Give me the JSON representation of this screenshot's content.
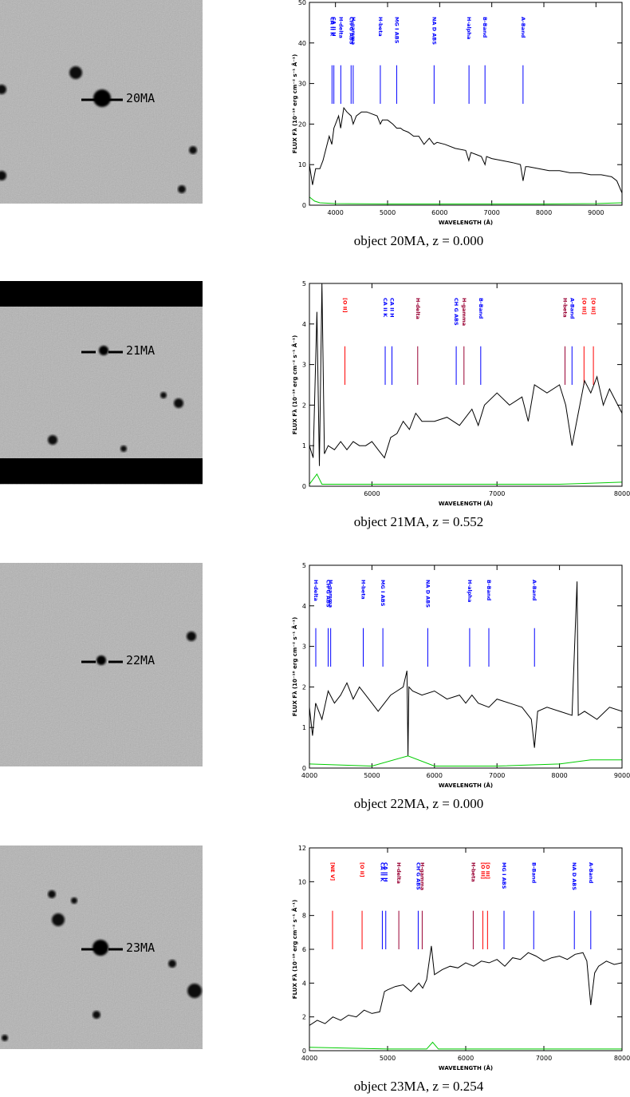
{
  "stamps": [
    {
      "label": "20MA"
    },
    {
      "label": "21MA"
    },
    {
      "label": "22MA"
    },
    {
      "label": "23MA"
    }
  ],
  "chart_data": [
    {
      "type": "line",
      "caption": "object 20MA, z = 0.000",
      "xlabel": "WAVELENGTH (Å)",
      "ylabel": "FLUX Fλ (10⁻¹⁸ erg cm⁻² s⁻¹ Å⁻¹)",
      "xlim": [
        3500,
        9500
      ],
      "xticks": [
        4000,
        5000,
        6000,
        7000,
        8000,
        9000
      ],
      "ylim": [
        0,
        50
      ],
      "yticks": [
        0,
        10,
        20,
        30,
        40,
        50
      ],
      "series": [
        {
          "color": "#000000",
          "x": [
            3500,
            3560,
            3620,
            3700,
            3760,
            3820,
            3880,
            3930,
            3970,
            4000,
            4060,
            4100,
            4160,
            4220,
            4300,
            4340,
            4400,
            4500,
            4600,
            4700,
            4800,
            4860,
            4900,
            5000,
            5100,
            5175,
            5250,
            5300,
            5400,
            5500,
            5600,
            5700,
            5800,
            5890,
            5950,
            6100,
            6300,
            6500,
            6560,
            6600,
            6700,
            6800,
            6870,
            6900,
            7000,
            7200,
            7400,
            7550,
            7600,
            7650,
            7700,
            7900,
            8100,
            8300,
            8500,
            8700,
            8900,
            9100,
            9300,
            9400,
            9500
          ],
          "values": [
            10,
            5,
            9,
            9,
            11,
            14,
            17,
            15,
            19,
            20,
            22,
            19,
            24,
            23,
            22,
            20,
            22,
            23,
            23,
            22.5,
            22,
            20,
            21,
            21,
            20,
            19,
            19,
            18.5,
            18,
            17,
            17,
            15,
            16.5,
            15,
            15.5,
            15,
            14,
            13.5,
            11,
            13,
            12.5,
            12,
            10,
            12,
            11.5,
            11,
            10.5,
            10,
            6,
            9.5,
            9.5,
            9,
            8.5,
            8.5,
            8,
            8,
            7.5,
            7.5,
            7,
            6,
            3
          ]
        },
        {
          "color": "#00cc00",
          "x": [
            3500,
            3600,
            3700,
            4000,
            5000,
            6000,
            7000,
            8000,
            9000,
            9500
          ],
          "values": [
            2,
            1,
            0.6,
            0.4,
            0.3,
            0.3,
            0.3,
            0.3,
            0.4,
            0.6
          ]
        }
      ],
      "annotations": [
        {
          "text": "CA II K",
          "x": 3934,
          "color": "#0000ff"
        },
        {
          "text": "CA II H",
          "x": 3969,
          "color": "#0000ff"
        },
        {
          "text": "H-delta",
          "x": 4102,
          "color": "#0000ff"
        },
        {
          "text": "CH G ABS",
          "x": 4300,
          "color": "#0000ff"
        },
        {
          "text": "H-gamma",
          "x": 4340,
          "color": "#0000ff"
        },
        {
          "text": "H-beta",
          "x": 4861,
          "color": "#0000ff"
        },
        {
          "text": "MG I ABS",
          "x": 5175,
          "color": "#0000ff"
        },
        {
          "text": "NA D ABS",
          "x": 5893,
          "color": "#0000ff"
        },
        {
          "text": "H-alpha",
          "x": 6563,
          "color": "#0000ff"
        },
        {
          "text": "B-Band",
          "x": 6870,
          "color": "#0000ff"
        },
        {
          "text": "A-Band",
          "x": 7600,
          "color": "#0000ff"
        }
      ]
    },
    {
      "type": "line",
      "caption": "object 21MA, z = 0.552",
      "xlabel": "WAVELENGTH (Å)",
      "ylabel": "FLUX Fλ (10⁻¹⁸ erg cm⁻² s⁻¹ Å⁻¹)",
      "xlim": [
        5500,
        8000
      ],
      "xticks": [
        6000,
        7000,
        8000
      ],
      "ylim": [
        0,
        5
      ],
      "yticks": [
        0,
        1,
        2,
        3,
        4,
        5
      ],
      "series": [
        {
          "color": "#000000",
          "x": [
            5500,
            5530,
            5560,
            5580,
            5600,
            5620,
            5650,
            5700,
            5750,
            5800,
            5850,
            5900,
            5950,
            6000,
            6050,
            6100,
            6150,
            6200,
            6250,
            6300,
            6350,
            6400,
            6500,
            6600,
            6700,
            6800,
            6850,
            6900,
            7000,
            7100,
            7200,
            7250,
            7300,
            7400,
            7500,
            7550,
            7600,
            7650,
            7700,
            7750,
            7800,
            7850,
            7900,
            8000
          ],
          "values": [
            1.0,
            0.7,
            4.3,
            0.5,
            5,
            0.8,
            1.0,
            0.9,
            1.1,
            0.9,
            1.1,
            1.0,
            1.0,
            1.1,
            0.9,
            0.7,
            1.2,
            1.3,
            1.6,
            1.4,
            1.8,
            1.6,
            1.6,
            1.7,
            1.5,
            1.9,
            1.5,
            2.0,
            2.3,
            2.0,
            2.2,
            1.6,
            2.5,
            2.3,
            2.5,
            2.0,
            1.0,
            1.8,
            2.6,
            2.3,
            2.7,
            2.0,
            2.4,
            1.8
          ]
        },
        {
          "color": "#00cc00",
          "x": [
            5500,
            5560,
            5600,
            6000,
            7000,
            7500,
            8000
          ],
          "values": [
            0.05,
            0.3,
            0.05,
            0.05,
            0.05,
            0.05,
            0.1
          ]
        }
      ],
      "annotations": [
        {
          "text": "[O II]",
          "x": 5784,
          "color": "#ff0000"
        },
        {
          "text": "CA II K",
          "x": 6106,
          "color": "#0000ff"
        },
        {
          "text": "CA II H",
          "x": 6160,
          "color": "#0000ff"
        },
        {
          "text": "H-delta",
          "x": 6366,
          "color": "#990033"
        },
        {
          "text": "CH G ABS",
          "x": 6674,
          "color": "#0000ff"
        },
        {
          "text": "H-gamma",
          "x": 6736,
          "color": "#990033"
        },
        {
          "text": "B-Band",
          "x": 6870,
          "color": "#0000ff"
        },
        {
          "text": "H-beta",
          "x": 7544,
          "color": "#990033"
        },
        {
          "text": "A-Band",
          "x": 7600,
          "color": "#0000ff"
        },
        {
          "text": "[O III]",
          "x": 7696,
          "color": "#ff0000"
        },
        {
          "text": "[O III]",
          "x": 7771,
          "color": "#ff0000"
        }
      ]
    },
    {
      "type": "line",
      "caption": "object 22MA, z = 0.000",
      "xlabel": "WAVELENGTH (Å)",
      "ylabel": "FLUX Fλ (10⁻¹⁸ erg cm⁻² s⁻¹ Å⁻¹)",
      "xlim": [
        4000,
        9000
      ],
      "xticks": [
        4000,
        5000,
        6000,
        7000,
        8000,
        9000
      ],
      "ylim": [
        0,
        5
      ],
      "yticks": [
        0,
        1,
        2,
        3,
        4,
        5
      ],
      "series": [
        {
          "color": "#000000",
          "x": [
            4000,
            4050,
            4100,
            4200,
            4300,
            4400,
            4500,
            4600,
            4700,
            4800,
            4900,
            5000,
            5100,
            5200,
            5300,
            5400,
            5500,
            5560,
            5577,
            5590,
            5650,
            5800,
            6000,
            6200,
            6400,
            6500,
            6600,
            6700,
            6870,
            7000,
            7200,
            7400,
            7550,
            7600,
            7650,
            7800,
            8000,
            8200,
            8280,
            8300,
            8400,
            8600,
            8800,
            9000
          ],
          "values": [
            1.5,
            0.8,
            1.6,
            1.2,
            1.9,
            1.6,
            1.8,
            2.1,
            1.7,
            2.0,
            1.8,
            1.6,
            1.4,
            1.6,
            1.8,
            1.9,
            2.0,
            2.4,
            0.3,
            2.0,
            1.9,
            1.8,
            1.9,
            1.7,
            1.8,
            1.6,
            1.8,
            1.6,
            1.5,
            1.7,
            1.6,
            1.5,
            1.2,
            0.5,
            1.4,
            1.5,
            1.4,
            1.3,
            4.6,
            1.3,
            1.4,
            1.2,
            1.5,
            1.4
          ]
        },
        {
          "color": "#00cc00",
          "x": [
            4000,
            5000,
            5577,
            6000,
            7000,
            8000,
            8500,
            9000
          ],
          "values": [
            0.1,
            0.05,
            0.3,
            0.05,
            0.05,
            0.1,
            0.2,
            0.2
          ]
        }
      ],
      "annotations": [
        {
          "text": "H-delta",
          "x": 4102,
          "color": "#0000ff"
        },
        {
          "text": "CH G ABS",
          "x": 4300,
          "color": "#0000ff"
        },
        {
          "text": "H-gamma",
          "x": 4340,
          "color": "#0000ff"
        },
        {
          "text": "H-beta",
          "x": 4861,
          "color": "#0000ff"
        },
        {
          "text": "MG I ABS",
          "x": 5175,
          "color": "#0000ff"
        },
        {
          "text": "NA D ABS",
          "x": 5893,
          "color": "#0000ff"
        },
        {
          "text": "H-alpha",
          "x": 6563,
          "color": "#0000ff"
        },
        {
          "text": "B-Band",
          "x": 6870,
          "color": "#0000ff"
        },
        {
          "text": "A-Band",
          "x": 7600,
          "color": "#0000ff"
        }
      ]
    },
    {
      "type": "line",
      "caption": "object 23MA, z = 0.254",
      "xlabel": "WAVELENGTH (Å)",
      "ylabel": "FLUX Fλ (10⁻¹⁸ erg cm⁻² s⁻¹ Å⁻¹)",
      "xlim": [
        4000,
        8000
      ],
      "xticks": [
        4000,
        5000,
        6000,
        7000,
        8000
      ],
      "ylim": [
        0,
        12
      ],
      "yticks": [
        0,
        2,
        4,
        6,
        8,
        10,
        12
      ],
      "series": [
        {
          "color": "#000000",
          "x": [
            4000,
            4100,
            4200,
            4300,
            4400,
            4500,
            4600,
            4700,
            4800,
            4900,
            4960,
            5000,
            5100,
            5200,
            5300,
            5400,
            5450,
            5500,
            5560,
            5600,
            5700,
            5800,
            5900,
            6000,
            6100,
            6200,
            6300,
            6400,
            6500,
            6600,
            6700,
            6800,
            6900,
            7000,
            7100,
            7200,
            7300,
            7400,
            7500,
            7550,
            7600,
            7650,
            7700,
            7800,
            7900,
            8000
          ],
          "values": [
            1.5,
            1.8,
            1.6,
            2.0,
            1.8,
            2.1,
            2.0,
            2.4,
            2.2,
            2.3,
            3.5,
            3.6,
            3.8,
            3.9,
            3.5,
            4.0,
            3.7,
            4.2,
            6.2,
            4.5,
            4.8,
            5.0,
            4.9,
            5.2,
            5.0,
            5.3,
            5.2,
            5.4,
            5.0,
            5.5,
            5.4,
            5.8,
            5.6,
            5.3,
            5.5,
            5.6,
            5.4,
            5.7,
            5.8,
            5.3,
            2.7,
            4.6,
            5.0,
            5.3,
            5.1,
            5.2
          ]
        },
        {
          "color": "#00cc00",
          "x": [
            4000,
            5000,
            5500,
            5577,
            5650,
            6000,
            7000,
            8000
          ],
          "values": [
            0.2,
            0.1,
            0.1,
            0.5,
            0.1,
            0.1,
            0.1,
            0.1
          ]
        }
      ],
      "annotations": [
        {
          "text": "[NE V]",
          "x": 4296,
          "color": "#ff0000"
        },
        {
          "text": "[O II]",
          "x": 4674,
          "color": "#ff0000"
        },
        {
          "text": "CA II K",
          "x": 4933,
          "color": "#0000ff"
        },
        {
          "text": "CA II H",
          "x": 4977,
          "color": "#0000ff"
        },
        {
          "text": "H-delta",
          "x": 5144,
          "color": "#990033"
        },
        {
          "text": "CH G ABS",
          "x": 5392,
          "color": "#0000ff"
        },
        {
          "text": "H-gamma",
          "x": 5443,
          "color": "#990033"
        },
        {
          "text": "H-beta",
          "x": 6096,
          "color": "#990033"
        },
        {
          "text": "[O III]",
          "x": 6219,
          "color": "#ff0000"
        },
        {
          "text": "[O III]",
          "x": 6279,
          "color": "#ff0000"
        },
        {
          "text": "MG I ABS",
          "x": 6490,
          "color": "#0000ff"
        },
        {
          "text": "B-Band",
          "x": 6870,
          "color": "#0000ff"
        },
        {
          "text": "NA D ABS",
          "x": 7390,
          "color": "#0000ff"
        },
        {
          "text": "A-Band",
          "x": 7600,
          "color": "#0000ff"
        }
      ]
    }
  ]
}
